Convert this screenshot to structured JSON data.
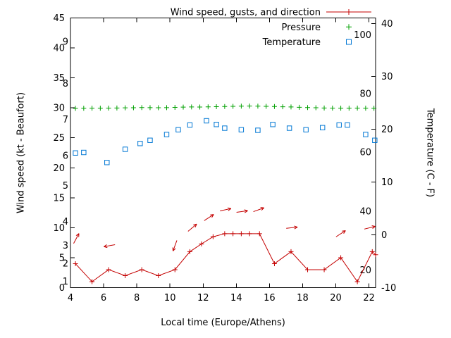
{
  "chart_data": {
    "type": "line",
    "title": "",
    "xlabel": "Local time (Europe/Athens)",
    "ylabel_left": "Wind speed (kt - Beaufort)",
    "ylabel_right": "Temperature (C - F)",
    "x_range": [
      4,
      22.4
    ],
    "x_ticks": [
      4,
      6,
      8,
      10,
      12,
      14,
      16,
      18,
      20,
      22
    ],
    "y_left_range": [
      0,
      45
    ],
    "y_left_ticks": [
      0,
      5,
      10,
      15,
      20,
      25,
      30,
      35,
      40,
      45
    ],
    "y_right_range": [
      -10,
      41.07
    ],
    "y_right_ticks": [
      -10,
      0,
      10,
      20,
      30,
      40
    ],
    "grid": false,
    "legend_position": "top-right-inside",
    "legend": [
      {
        "label": "Wind speed, gusts, and direction",
        "style": "line-plus",
        "color": "#c40000"
      },
      {
        "label": "Pressure",
        "style": "plus",
        "color": "#00a000"
      },
      {
        "label": "Temperature",
        "style": "square",
        "color": "#0077d4"
      }
    ],
    "beaufort_scale": [
      {
        "bft": "1",
        "kt": 1
      },
      {
        "bft": "2",
        "kt": 4
      },
      {
        "bft": "3",
        "kt": 7
      },
      {
        "bft": "4",
        "kt": 11
      },
      {
        "bft": "5",
        "kt": 17
      },
      {
        "bft": "6",
        "kt": 22
      },
      {
        "bft": "7",
        "kt": 28
      },
      {
        "bft": "8",
        "kt": 34
      },
      {
        "bft": "9",
        "kt": 41
      }
    ],
    "fahrenheit_scale": [
      {
        "f": "20",
        "c": -6.7
      },
      {
        "f": "40",
        "c": 4.4
      },
      {
        "f": "60",
        "c": 15.6
      },
      {
        "f": "80",
        "c": 26.7
      },
      {
        "f": "100",
        "c": 37.8
      }
    ],
    "series": {
      "wind": {
        "name": "Wind speed, gusts, and direction",
        "axis": "left",
        "color": "#c40000",
        "points": [
          [
            4.3,
            4
          ],
          [
            5.3,
            1
          ],
          [
            6.3,
            3
          ],
          [
            7.3,
            2
          ],
          [
            8.3,
            3
          ],
          [
            9.3,
            2
          ],
          [
            10.3,
            3
          ],
          [
            11.2,
            6
          ],
          [
            11.9,
            7.3
          ],
          [
            12.6,
            8.5
          ],
          [
            13.3,
            9
          ],
          [
            13.8,
            9
          ],
          [
            14.3,
            9
          ],
          [
            14.8,
            9
          ],
          [
            15.4,
            9
          ],
          [
            16.3,
            4
          ],
          [
            17.3,
            6
          ],
          [
            18.3,
            3
          ],
          [
            19.3,
            3
          ],
          [
            20.3,
            5
          ],
          [
            21.3,
            1
          ],
          [
            22.2,
            6
          ],
          [
            22.4,
            5.5
          ]
        ]
      },
      "gusts": {
        "name": "Gusts and direction arrows",
        "axis": "left",
        "color": "#c40000",
        "arrows": [
          {
            "t": 4.35,
            "kt": 8.2,
            "dir": 62
          },
          {
            "t": 6.35,
            "kt": 7.0,
            "dir": 190
          },
          {
            "t": 10.3,
            "kt": 7.0,
            "dir": 250
          },
          {
            "t": 11.35,
            "kt": 10.0,
            "dir": 40
          },
          {
            "t": 12.35,
            "kt": 11.7,
            "dir": 33
          },
          {
            "t": 13.35,
            "kt": 13.0,
            "dir": 12
          },
          {
            "t": 14.35,
            "kt": 12.7,
            "dir": 8
          },
          {
            "t": 15.35,
            "kt": 13.0,
            "dir": 20
          },
          {
            "t": 17.35,
            "kt": 10.0,
            "dir": 6
          },
          {
            "t": 20.3,
            "kt": 9.0,
            "dir": 33
          },
          {
            "t": 22.05,
            "kt": 10.0,
            "dir": 14
          }
        ]
      },
      "pressure": {
        "name": "Pressure",
        "axis": "left",
        "color": "#00a000",
        "points": [
          [
            4.3,
            29.92
          ],
          [
            4.8,
            29.93
          ],
          [
            5.3,
            29.95
          ],
          [
            5.8,
            29.94
          ],
          [
            6.3,
            29.96
          ],
          [
            6.8,
            29.98
          ],
          [
            7.3,
            30.0
          ],
          [
            7.8,
            30.02
          ],
          [
            8.3,
            30.05
          ],
          [
            8.8,
            30.03
          ],
          [
            9.3,
            30.02
          ],
          [
            9.8,
            30.04
          ],
          [
            10.3,
            30.08
          ],
          [
            10.8,
            30.12
          ],
          [
            11.3,
            30.15
          ],
          [
            11.8,
            30.13
          ],
          [
            12.3,
            30.16
          ],
          [
            12.8,
            30.2
          ],
          [
            13.3,
            30.22
          ],
          [
            13.8,
            30.25
          ],
          [
            14.3,
            30.28
          ],
          [
            14.8,
            30.3
          ],
          [
            15.3,
            30.28
          ],
          [
            15.8,
            30.26
          ],
          [
            16.3,
            30.22
          ],
          [
            16.8,
            30.18
          ],
          [
            17.3,
            30.15
          ],
          [
            17.8,
            30.1
          ],
          [
            18.3,
            30.05
          ],
          [
            18.8,
            30.02
          ],
          [
            19.3,
            29.98
          ],
          [
            19.8,
            29.96
          ],
          [
            20.3,
            29.95
          ],
          [
            20.8,
            29.94
          ],
          [
            21.3,
            29.96
          ],
          [
            21.8,
            29.95
          ],
          [
            22.3,
            29.93
          ]
        ]
      },
      "temperature": {
        "name": "Temperature",
        "axis": "right",
        "color": "#0077d4",
        "points": [
          [
            4.3,
            15.5
          ],
          [
            4.8,
            15.6
          ],
          [
            6.2,
            13.7
          ],
          [
            7.3,
            16.2
          ],
          [
            8.2,
            17.3
          ],
          [
            8.8,
            17.9
          ],
          [
            9.8,
            19.0
          ],
          [
            10.5,
            19.9
          ],
          [
            11.2,
            20.8
          ],
          [
            12.2,
            21.6
          ],
          [
            12.8,
            20.9
          ],
          [
            13.3,
            20.2
          ],
          [
            14.3,
            19.9
          ],
          [
            15.3,
            19.8
          ],
          [
            16.2,
            20.9
          ],
          [
            17.2,
            20.2
          ],
          [
            18.2,
            19.9
          ],
          [
            19.2,
            20.3
          ],
          [
            20.2,
            20.8
          ],
          [
            20.7,
            20.8
          ],
          [
            21.8,
            19.0
          ],
          [
            22.35,
            17.9
          ]
        ]
      }
    },
    "colors": {
      "background": "#ffffff",
      "axis": "#000000",
      "wind": "#c40000",
      "pressure": "#00a000",
      "temperature": "#0077d4"
    }
  }
}
